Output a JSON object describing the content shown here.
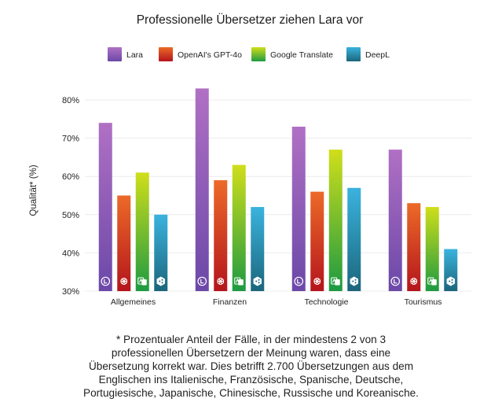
{
  "footnote": "* Prozentualer Anteil der Fälle, in der mindestens 2 von 3\nprofessionellen Übersetzern der Meinung waren, dass eine\nÜbersetzung korrekt war. Dies betrifft 2.700 Übersetzungen aus dem\nEnglischen ins Italienische, Französische, Spanische, Deutsche,\nPortugiesische, Japanische, Chinesische, Russische und Koreanische.",
  "chart_data": {
    "type": "bar",
    "title": "Professionelle Übersetzer ziehen Lara vor",
    "xlabel": "",
    "ylabel": "Qualität* (%)",
    "ylim": [
      30,
      80
    ],
    "yticks": [
      "30%",
      "40%",
      "50%",
      "60%",
      "70%",
      "80%"
    ],
    "grid": true,
    "legend_position": "top",
    "categories": [
      "Allgemeines",
      "Finanzen",
      "Technologie",
      "Tourismus"
    ],
    "series": [
      {
        "name": "Lara",
        "values": [
          74,
          83,
          73,
          67
        ],
        "color_top": "#b070c4",
        "color_bottom": "#6b48a8",
        "icon": "lara-icon"
      },
      {
        "name": "OpenAI's GPT-4o",
        "values": [
          55,
          59,
          56,
          53
        ],
        "color_top": "#ec6a28",
        "color_bottom": "#b4151c",
        "icon": "openai-icon"
      },
      {
        "name": "Google Translate",
        "values": [
          61,
          63,
          67,
          52
        ],
        "color_top": "#d0de1a",
        "color_bottom": "#1d9a42",
        "icon": "google-translate-icon"
      },
      {
        "name": "DeepL",
        "values": [
          50,
          52,
          57,
          41
        ],
        "color_top": "#3ab3de",
        "color_bottom": "#1b667c",
        "icon": "deepl-icon"
      }
    ]
  }
}
